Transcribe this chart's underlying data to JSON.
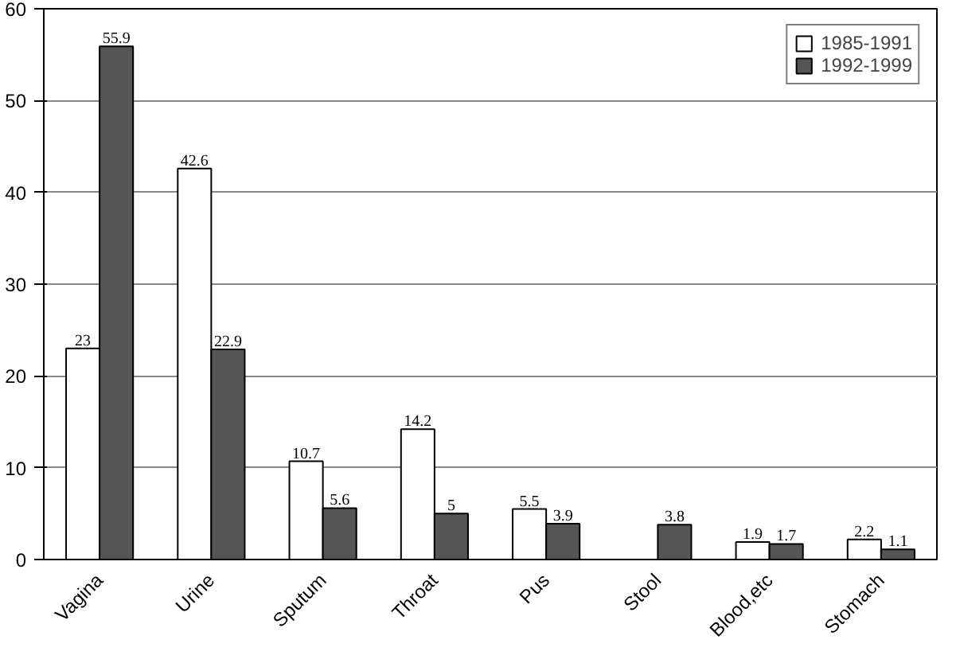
{
  "chart_data": {
    "type": "bar",
    "categories": [
      "Vagina",
      "Urine",
      "Sputum",
      "Throat",
      "Pus",
      "Stool",
      "Blood,etc",
      "Stomach"
    ],
    "series": [
      {
        "name": "1985-1991",
        "color": "#ffffff",
        "values": [
          23,
          42.6,
          10.7,
          14.2,
          5.5,
          null,
          1.9,
          2.2
        ]
      },
      {
        "name": "1992-1999",
        "color": "#555555",
        "values": [
          55.9,
          22.9,
          5.6,
          5,
          3.9,
          3.8,
          1.7,
          1.1
        ]
      }
    ],
    "ylim": [
      0,
      60
    ],
    "yticks": [
      0,
      10,
      20,
      30,
      40,
      50,
      60
    ],
    "grid": "y",
    "legend": "top right",
    "data_labels": true
  }
}
